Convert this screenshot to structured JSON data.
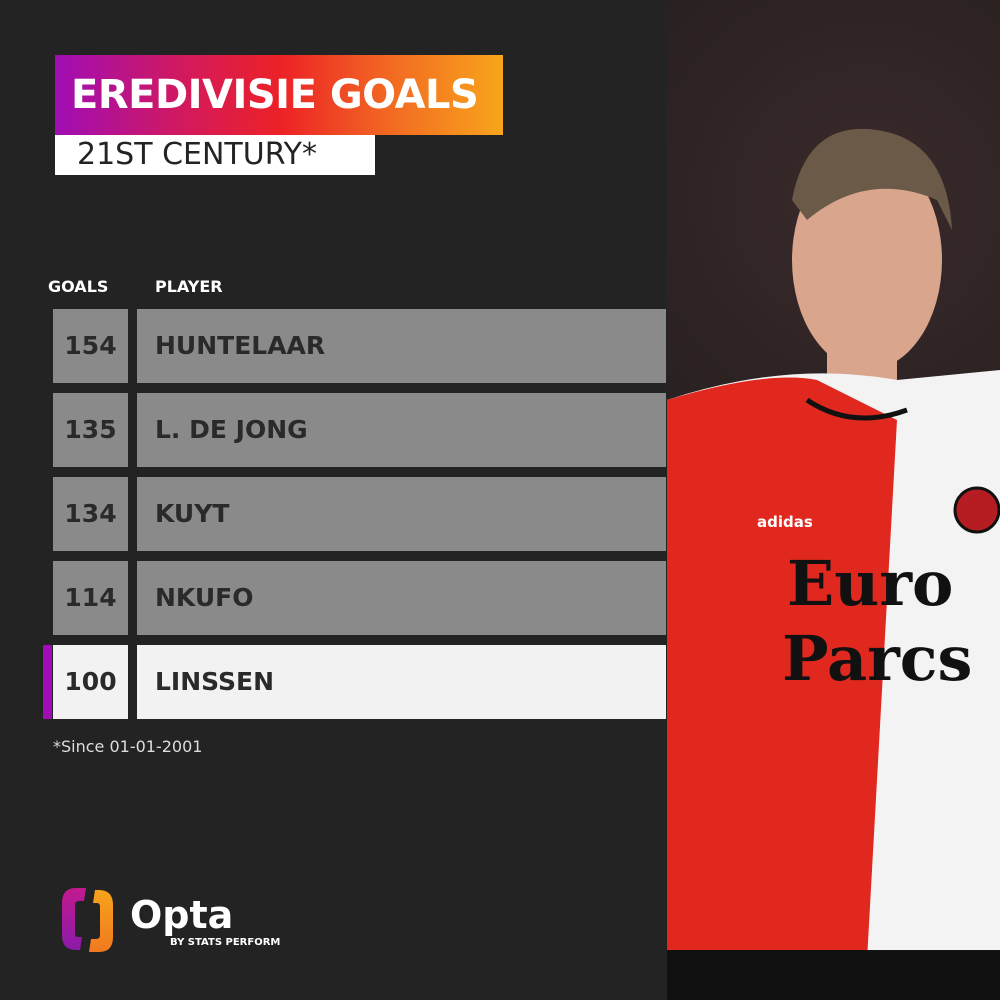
{
  "title": "EREDIVISIE GOALS",
  "subtitle": "21ST CENTURY*",
  "table": {
    "headers": {
      "goals": "GOALS",
      "player": "PLAYER"
    },
    "rows": [
      {
        "goals": "154",
        "player": "HUNTELAAR"
      },
      {
        "goals": "135",
        "player": "L. DE JONG"
      },
      {
        "goals": "134",
        "player": "KUYT"
      },
      {
        "goals": "114",
        "player": "NKUFO"
      },
      {
        "goals": "100",
        "player": "LINSSEN",
        "highlighted": true
      }
    ]
  },
  "footnote": "*Since 01-01-2001",
  "brand": {
    "name": "Opta",
    "tagline": "BY STATS PERFORM"
  },
  "photo": {
    "shirt_text": [
      "Euro",
      "Parcs"
    ],
    "kit_brand": "adidas"
  },
  "colors": {
    "background": "#232323",
    "row": "#8a8a8a",
    "highlight": "#f2f2f2",
    "accent": "#a00db5",
    "gradient": [
      "#a00db5",
      "#ec2127",
      "#f8a51c"
    ]
  }
}
